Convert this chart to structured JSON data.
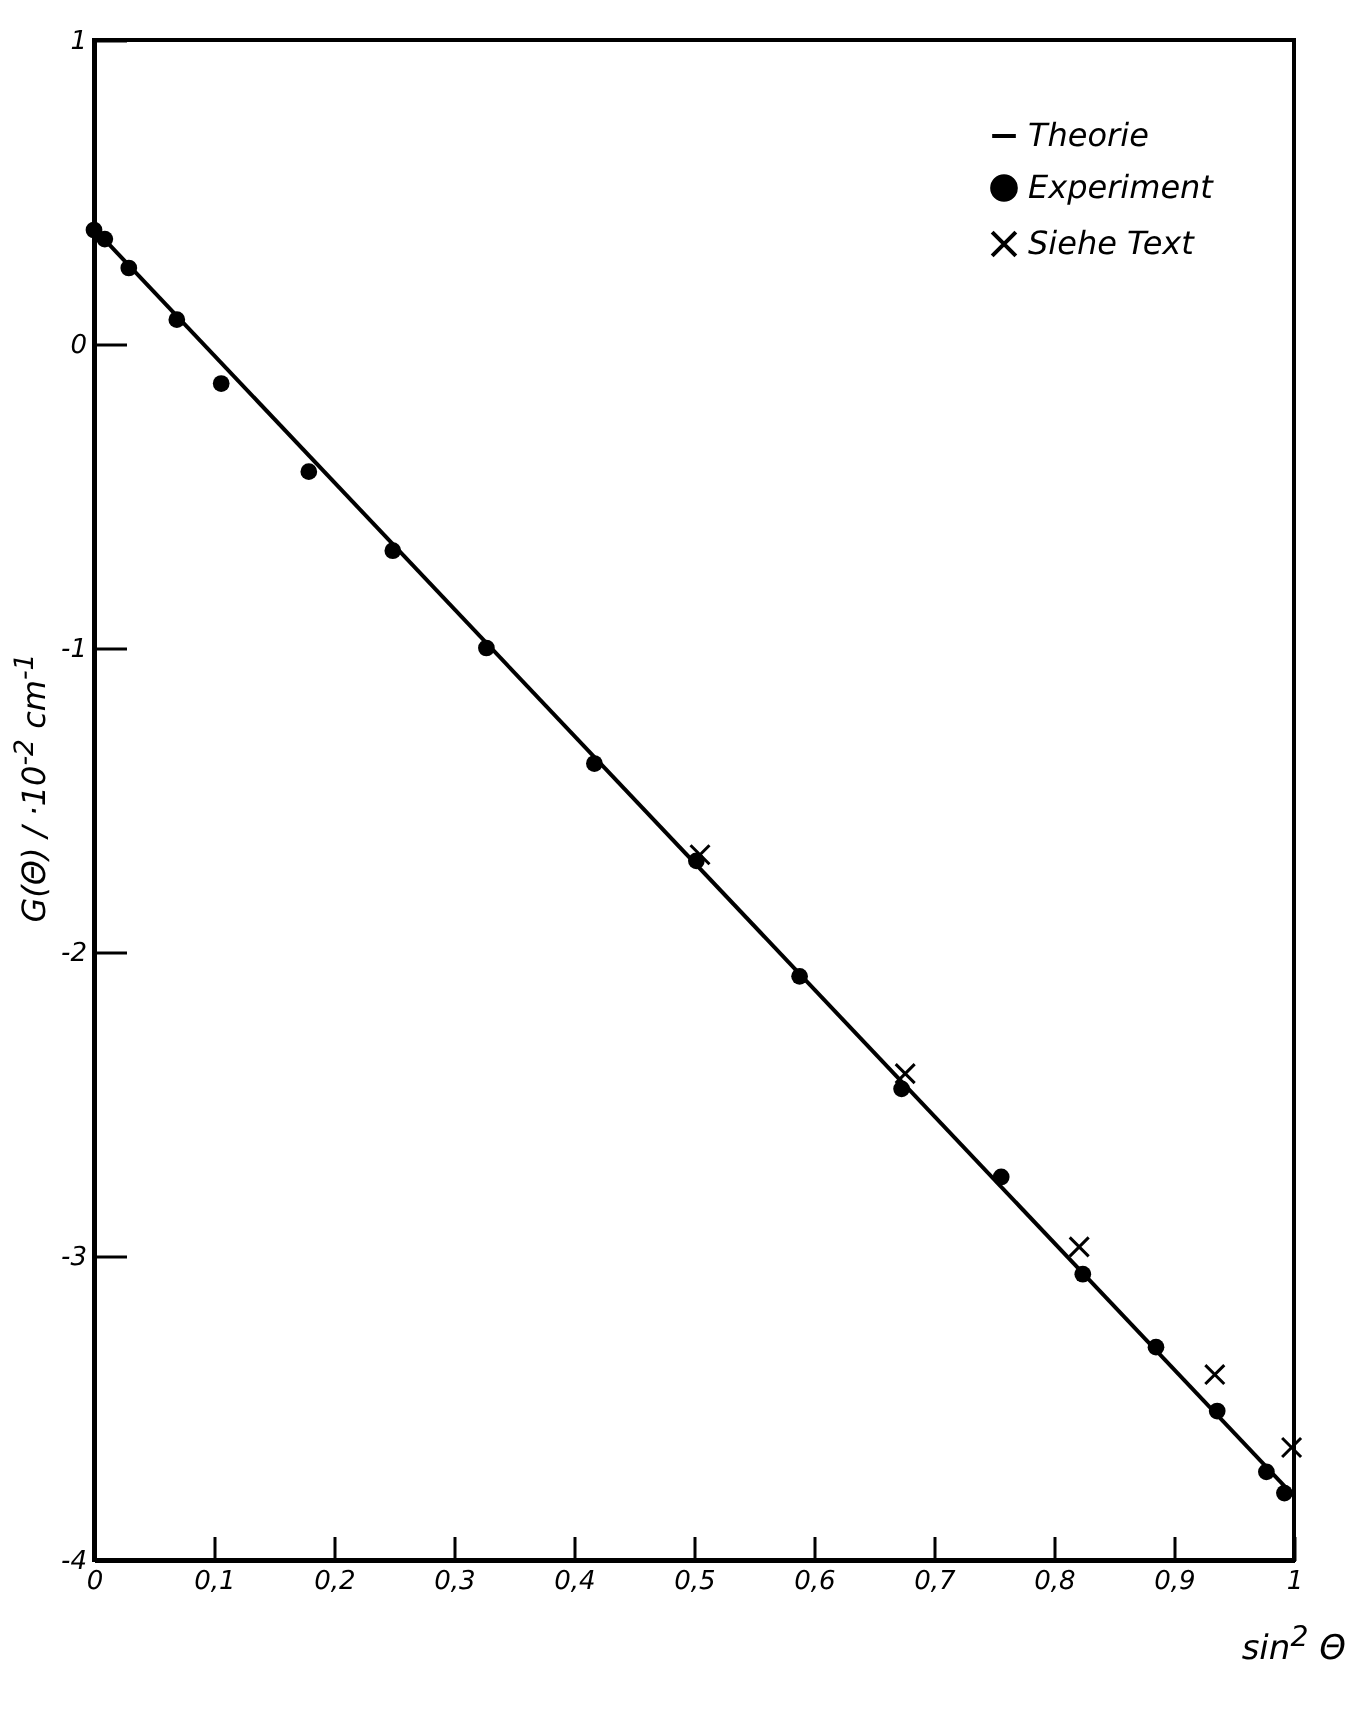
{
  "chart_data": {
    "type": "scatter",
    "xlabel": "sin$^{2}$ Θ",
    "ylabel": "G(Θ) / ·10$^{-2}$ cm$^{-1}$",
    "xlim": [
      0,
      1
    ],
    "ylim": [
      -4,
      1
    ],
    "xticks": [
      0,
      {
        "value": 0.1,
        "label": "0,1"
      },
      {
        "value": 0.2,
        "label": "0,2"
      },
      {
        "value": 0.3,
        "label": "0,3"
      },
      {
        "value": 0.4,
        "label": "0,4"
      },
      {
        "value": 0.5,
        "label": "0,5"
      },
      {
        "value": 0.6,
        "label": "0,6"
      },
      {
        "value": 0.7,
        "label": "0,7"
      },
      {
        "value": 0.8,
        "label": "0,8"
      },
      {
        "value": 0.9,
        "label": "0,9"
      },
      1
    ],
    "yticks": [
      -4,
      -3,
      -2,
      -1,
      0,
      1
    ],
    "grid": false,
    "legend": "top right",
    "series": [
      {
        "name": "Theorie",
        "type": "line",
        "marker": "none",
        "line_style": "solid",
        "color": "#000000",
        "x": [
          0,
          1
        ],
        "values": [
          0.38,
          -3.79
        ]
      },
      {
        "name": "Experiment",
        "marker": "circle",
        "color": "#000000",
        "x": [
          0,
          0.009,
          0.029,
          0.069,
          0.106,
          0.179,
          0.249,
          0.327,
          0.417,
          0.502,
          0.588,
          0.673,
          0.756,
          0.824,
          0.885,
          0.936,
          0.977,
          0.992
        ],
        "values": [
          0.375,
          0.345,
          0.25,
          0.08,
          -0.13,
          -0.42,
          -0.68,
          -1.0,
          -1.38,
          -1.7,
          -2.08,
          -2.45,
          -2.74,
          -3.06,
          -3.3,
          -3.51,
          -3.71,
          -3.78
        ]
      },
      {
        "name": "Siehe Text",
        "marker": "cross",
        "color": "#000000",
        "x": [
          0.505,
          0.676,
          0.821,
          0.934,
          0.998
        ],
        "values": [
          -1.68,
          -2.4,
          -2.97,
          -3.39,
          -3.63
        ]
      }
    ]
  }
}
